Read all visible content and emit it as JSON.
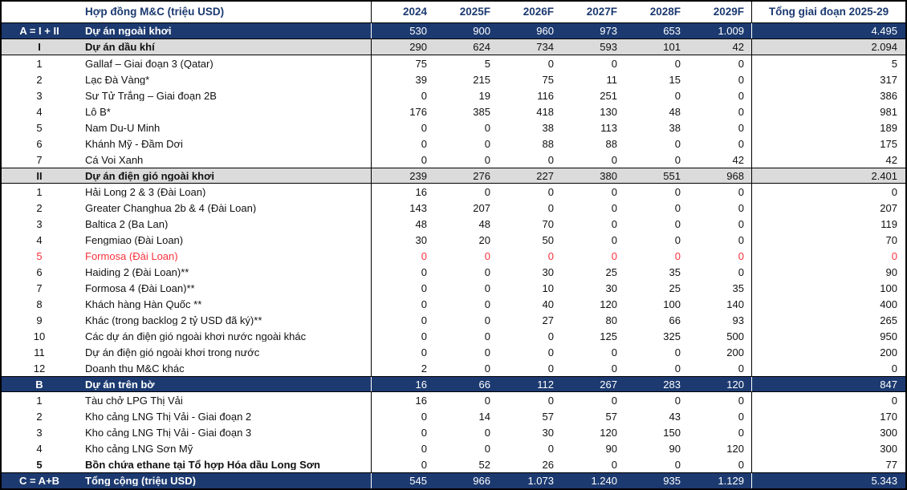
{
  "colors": {
    "navy": "#1C3A70",
    "gray": "#DBDBDB",
    "red": "#F8333C",
    "border": "#000000"
  },
  "header": {
    "label": "Hợp đồng M&C (triệu USD)",
    "years": [
      "2024",
      "2025F",
      "2026F",
      "2027F",
      "2028F",
      "2029F"
    ],
    "total": "Tổng giai đoạn 2025-29"
  },
  "rows": [
    {
      "style": "dark",
      "code": "A = I + II",
      "name": "Dự án ngoài khơi",
      "values": [
        "530",
        "900",
        "960",
        "973",
        "653",
        "1.009"
      ],
      "total": "4.495"
    },
    {
      "style": "gray",
      "code": "I",
      "name": "Dự án dầu khí",
      "values": [
        "290",
        "624",
        "734",
        "593",
        "101",
        "42"
      ],
      "total": "2.094"
    },
    {
      "style": "normal",
      "code": "1",
      "name": "Gallaf – Giai đoạn 3 (Qatar)",
      "values": [
        "75",
        "5",
        "0",
        "0",
        "0",
        "0"
      ],
      "total": "5"
    },
    {
      "style": "normal",
      "code": "2",
      "name": "Lạc Đà Vàng*",
      "values": [
        "39",
        "215",
        "75",
        "11",
        "15",
        "0"
      ],
      "total": "317"
    },
    {
      "style": "normal",
      "code": "3",
      "name": "Sư Tử Trắng – Giai đoạn 2B",
      "values": [
        "0",
        "19",
        "116",
        "251",
        "0",
        "0"
      ],
      "total": "386"
    },
    {
      "style": "normal",
      "code": "4",
      "name": "Lô B*",
      "values": [
        "176",
        "385",
        "418",
        "130",
        "48",
        "0"
      ],
      "total": "981"
    },
    {
      "style": "normal",
      "code": "5",
      "name": "Nam Du-U Minh",
      "values": [
        "0",
        "0",
        "38",
        "113",
        "38",
        "0"
      ],
      "total": "189"
    },
    {
      "style": "normal",
      "code": "6",
      "name": "Khánh Mỹ - Đầm Dơi",
      "values": [
        "0",
        "0",
        "88",
        "88",
        "0",
        "0"
      ],
      "total": "175"
    },
    {
      "style": "normal",
      "code": "7",
      "name": "Cá Voi Xanh",
      "values": [
        "0",
        "0",
        "0",
        "0",
        "0",
        "42"
      ],
      "total": "42"
    },
    {
      "style": "gray",
      "code": "II",
      "name": "Dự án điện gió ngoài khơi",
      "values": [
        "239",
        "276",
        "227",
        "380",
        "551",
        "968"
      ],
      "total": "2.401"
    },
    {
      "style": "normal",
      "code": "1",
      "name": "Hải Long 2 & 3 (Đài Loan)",
      "values": [
        "16",
        "0",
        "0",
        "0",
        "0",
        "0"
      ],
      "total": "0"
    },
    {
      "style": "normal",
      "code": "2",
      "name": "Greater Changhua 2b & 4 (Đài Loan)",
      "values": [
        "143",
        "207",
        "0",
        "0",
        "0",
        "0"
      ],
      "total": "207"
    },
    {
      "style": "normal",
      "code": "3",
      "name": "Baltica 2 (Ba Lan)",
      "values": [
        "48",
        "48",
        "70",
        "0",
        "0",
        "0"
      ],
      "total": "119"
    },
    {
      "style": "normal",
      "code": "4",
      "name": "Fengmiao (Đài Loan)",
      "values": [
        "30",
        "20",
        "50",
        "0",
        "0",
        "0"
      ],
      "total": "70"
    },
    {
      "style": "red",
      "code": "5",
      "name": "Formosa (Đài Loan)",
      "values": [
        "0",
        "0",
        "0",
        "0",
        "0",
        "0"
      ],
      "total": "0"
    },
    {
      "style": "normal",
      "code": "6",
      "name": "Haiding 2 (Đài Loan)**",
      "values": [
        "0",
        "0",
        "30",
        "25",
        "35",
        "0"
      ],
      "total": "90"
    },
    {
      "style": "normal",
      "code": "7",
      "name": "Formosa 4 (Đài Loan)**",
      "values": [
        "0",
        "0",
        "10",
        "30",
        "25",
        "35"
      ],
      "total": "100"
    },
    {
      "style": "normal",
      "code": "8",
      "name": "Khách hàng Hàn Quốc **",
      "values": [
        "0",
        "0",
        "40",
        "120",
        "100",
        "140"
      ],
      "total": "400"
    },
    {
      "style": "normal",
      "code": "9",
      "name": "Khác (trong backlog 2 tỷ USD đã ký)**",
      "values": [
        "0",
        "0",
        "27",
        "80",
        "66",
        "93"
      ],
      "total": "265"
    },
    {
      "style": "normal",
      "code": "10",
      "name": "Các dự án điện gió ngoài khơi nước ngoài khác",
      "values": [
        "0",
        "0",
        "0",
        "125",
        "325",
        "500"
      ],
      "total": "950"
    },
    {
      "style": "normal",
      "code": "11",
      "name": "Dự án điện gió ngoài khơi trong nước",
      "values": [
        "0",
        "0",
        "0",
        "0",
        "0",
        "200"
      ],
      "total": "200"
    },
    {
      "style": "normal",
      "code": "12",
      "name": "Doanh thu M&C khác",
      "values": [
        "2",
        "0",
        "0",
        "0",
        "0",
        "0"
      ],
      "total": "0"
    },
    {
      "style": "dark",
      "code": "B",
      "name": "Dự án trên bờ",
      "values": [
        "16",
        "66",
        "112",
        "267",
        "283",
        "120"
      ],
      "total": "847"
    },
    {
      "style": "normal",
      "code": "1",
      "name": "Tàu chở LPG Thị Vải",
      "values": [
        "16",
        "0",
        "0",
        "0",
        "0",
        "0"
      ],
      "total": "0"
    },
    {
      "style": "normal",
      "code": "2",
      "name": "Kho cảng LNG Thị Vải - Giai đoạn 2",
      "values": [
        "0",
        "14",
        "57",
        "57",
        "43",
        "0"
      ],
      "total": "170"
    },
    {
      "style": "normal",
      "code": "3",
      "name": "Kho cảng LNG Thị Vải - Giai đoạn 3",
      "values": [
        "0",
        "0",
        "30",
        "120",
        "150",
        "0"
      ],
      "total": "300"
    },
    {
      "style": "normal",
      "code": "4",
      "name": "Kho cảng LNG Sơn Mỹ",
      "values": [
        "0",
        "0",
        "0",
        "90",
        "90",
        "120"
      ],
      "total": "300"
    },
    {
      "style": "boldname",
      "code": "5",
      "name": "Bồn chứa ethane tại Tổ hợp Hóa dầu Long Sơn",
      "values": [
        "0",
        "52",
        "26",
        "0",
        "0",
        "0"
      ],
      "total": "77"
    },
    {
      "style": "dark",
      "code": "C = A+B",
      "name": "Tổng cộng (triệu USD)",
      "values": [
        "545",
        "966",
        "1.073",
        "1.240",
        "935",
        "1.129"
      ],
      "total": "5.343"
    }
  ]
}
